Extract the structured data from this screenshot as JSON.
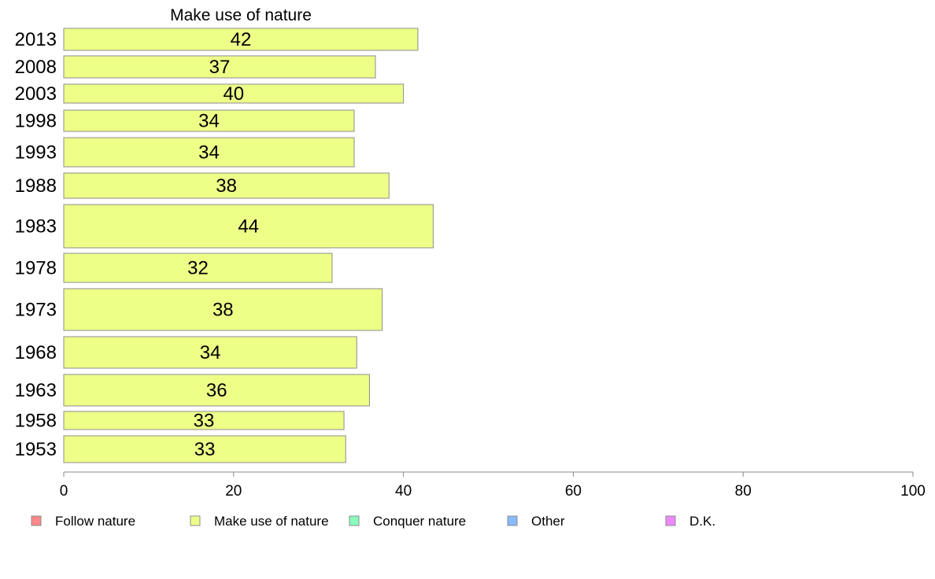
{
  "chart_data": {
    "type": "bar",
    "orientation": "horizontal",
    "title": "Make use of nature",
    "categories": [
      "2013",
      "2008",
      "2003",
      "1998",
      "1993",
      "1988",
      "1983",
      "1978",
      "1973",
      "1968",
      "1963",
      "1958",
      "1953"
    ],
    "values": [
      42,
      37,
      40,
      34,
      34,
      38,
      44,
      32,
      38,
      34,
      36,
      33,
      33
    ],
    "bar_values": [
      41.7,
      36.7,
      40.0,
      34.2,
      34.2,
      38.3,
      43.5,
      31.6,
      37.5,
      34.5,
      36.0,
      33.0,
      33.2
    ],
    "xlim": [
      0,
      100
    ],
    "x_ticks": [
      "0",
      "20",
      "40",
      "60",
      "80",
      "100"
    ],
    "bar_color": "#eeff88",
    "grid": false,
    "legend_position": "bottom",
    "legend": [
      {
        "label": "Follow nature",
        "color": "#ff8888"
      },
      {
        "label": "Make use of nature",
        "color": "#eeff88"
      },
      {
        "label": "Conquer nature",
        "color": "#88ffbb"
      },
      {
        "label": "Other",
        "color": "#88bbff"
      },
      {
        "label": "D.K.",
        "color": "#ee88ff"
      }
    ]
  }
}
